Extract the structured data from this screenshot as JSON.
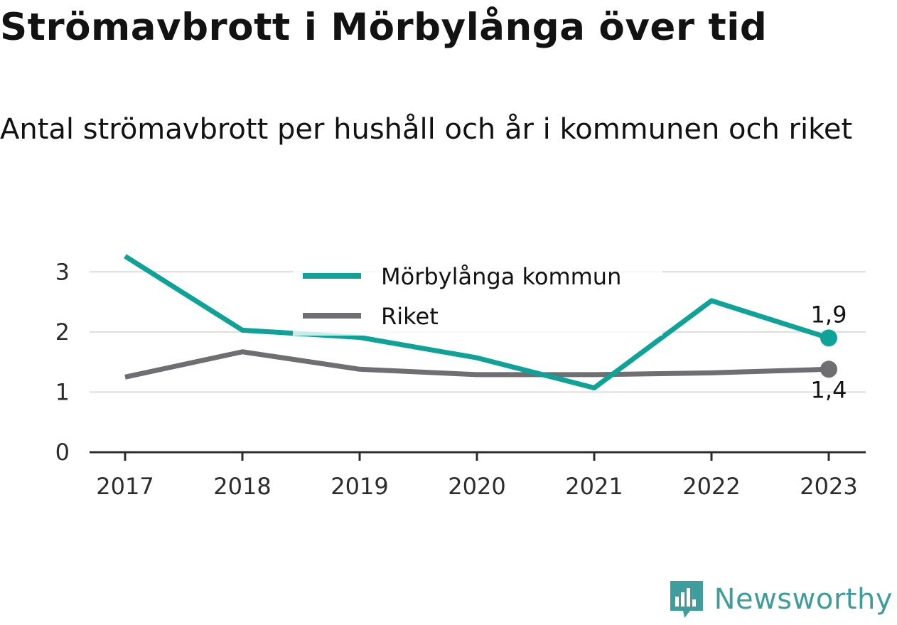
{
  "title": "Strömavbrott i Mörbylånga över tid",
  "subtitle": "Antal strömavbrott per hushåll och år i kommunen och riket",
  "brand": {
    "name": "Newsworthy",
    "icon": "newsworthy-chart-badge-icon",
    "color": "#3f9e9b"
  },
  "chart_data": {
    "type": "line",
    "x": [
      "2017",
      "2018",
      "2019",
      "2020",
      "2021",
      "2022",
      "2023"
    ],
    "ylim": [
      0,
      3.5
    ],
    "yticks": [
      "0",
      "1",
      "2",
      "3"
    ],
    "grid": true,
    "legend_position": "top-center",
    "series": [
      {
        "name": "Mörbylånga kommun",
        "color": "#0fa298",
        "values": [
          3.26,
          2.03,
          1.91,
          1.57,
          1.07,
          2.52,
          1.9
        ],
        "end_label": "1,9"
      },
      {
        "name": "Riket",
        "color": "#6e6e73",
        "values": [
          1.25,
          1.67,
          1.38,
          1.29,
          1.29,
          1.32,
          1.38
        ],
        "end_label": "1,4"
      }
    ]
  }
}
